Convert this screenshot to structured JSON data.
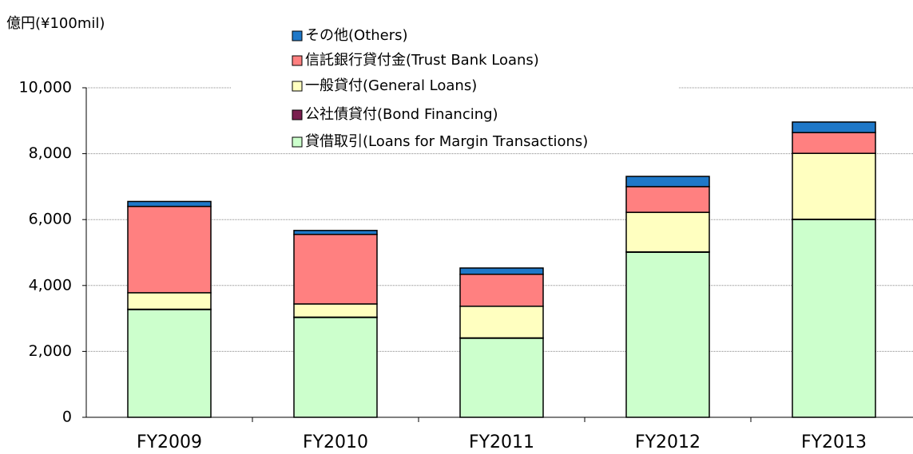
{
  "chart_data": {
    "type": "stacked_bar",
    "y_axis_label": "億円(¥100mil)",
    "categories": [
      "FY2009",
      "FY2010",
      "FY2011",
      "FY2012",
      "FY2013"
    ],
    "series": [
      {
        "name": "貸借取引(Loans for Margin Transactions)",
        "color": "#ccffcc",
        "values": [
          3270,
          3030,
          2400,
          5010,
          6000
        ]
      },
      {
        "name": "公社債貸付(Bond Financing)",
        "color": "#7a1f4f",
        "values": [
          10,
          10,
          10,
          10,
          10
        ]
      },
      {
        "name": "一般貸付(General Loans)",
        "color": "#ffffc0",
        "values": [
          500,
          400,
          960,
          1200,
          2000
        ]
      },
      {
        "name": "信託銀行貸付金(Trust Bank Loans)",
        "color": "#ff8080",
        "values": [
          2620,
          2110,
          970,
          780,
          630
        ]
      },
      {
        "name": "その他(Others)",
        "color": "#1f78c8",
        "values": [
          150,
          120,
          190,
          310,
          320
        ]
      }
    ],
    "ylim": [
      0,
      10000
    ],
    "yticks": [
      0,
      {
        "value": 2000,
        "label": "2,000"
      },
      {
        "value": 4000,
        "label": "4,000"
      },
      {
        "value": 6000,
        "label": "6,000"
      },
      {
        "value": 8000,
        "label": "8,000"
      },
      {
        "value": 10000,
        "label": "10,000"
      }
    ],
    "grid": true,
    "legend": "top"
  }
}
